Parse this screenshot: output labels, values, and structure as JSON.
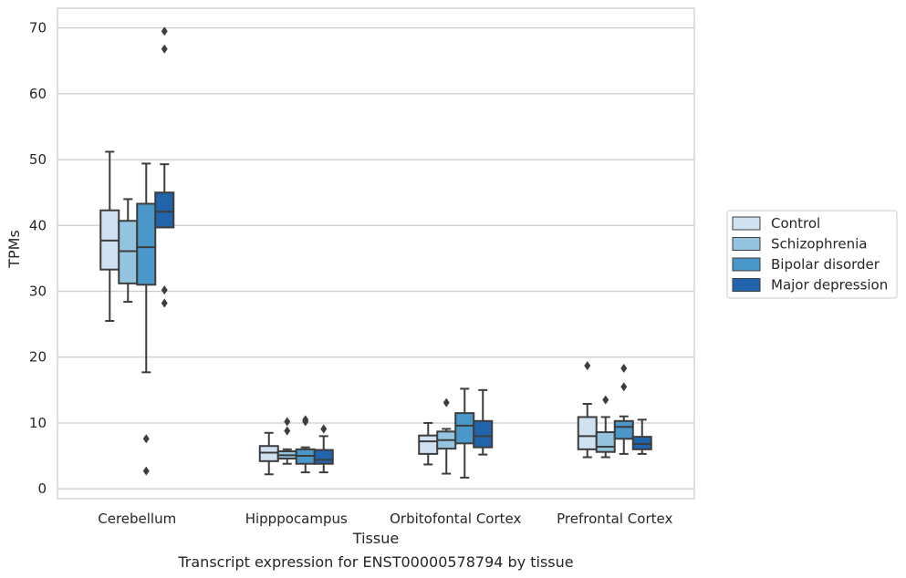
{
  "chart_data": {
    "type": "box",
    "xlabel": "Tissue",
    "ylabel": "TPMs",
    "caption": "Transcript expression for ENST00000578794 by tissue",
    "ylim": [
      -1.5,
      73
    ],
    "yticks": [
      0,
      10,
      20,
      30,
      40,
      50,
      60,
      70
    ],
    "grid": true,
    "legend_position": "right",
    "categories": [
      "Cerebellum",
      "Hipppocampus",
      "Orbitofontal Cortex",
      "Prefrontal Cortex"
    ],
    "series": [
      {
        "name": "Control",
        "color": "#d0e1f2",
        "boxes": [
          {
            "whislo": 25.5,
            "q1": 33.3,
            "med": 37.7,
            "q3": 42.3,
            "whishi": 51.2,
            "fliers": []
          },
          {
            "whislo": 2.2,
            "q1": 4.2,
            "med": 5.5,
            "q3": 6.5,
            "whishi": 8.5,
            "fliers": []
          },
          {
            "whislo": 3.7,
            "q1": 5.3,
            "med": 7.2,
            "q3": 8.1,
            "whishi": 10.0,
            "fliers": []
          },
          {
            "whislo": 4.8,
            "q1": 6.0,
            "med": 8.0,
            "q3": 10.9,
            "whishi": 12.9,
            "fliers": [
              18.7
            ]
          }
        ]
      },
      {
        "name": "Schizophrenia",
        "color": "#94c4df",
        "boxes": [
          {
            "whislo": 28.4,
            "q1": 31.2,
            "med": 36.1,
            "q3": 40.7,
            "whishi": 44.0,
            "fliers": []
          },
          {
            "whislo": 3.8,
            "q1": 4.6,
            "med": 5.1,
            "q3": 5.7,
            "whishi": 6.0,
            "fliers": [
              10.2,
              8.8
            ]
          },
          {
            "whislo": 2.3,
            "q1": 6.1,
            "med": 7.4,
            "q3": 8.7,
            "whishi": 9.1,
            "fliers": [
              13.1
            ]
          },
          {
            "whislo": 4.8,
            "q1": 5.6,
            "med": 6.4,
            "q3": 8.6,
            "whishi": 10.9,
            "fliers": [
              13.5
            ]
          }
        ]
      },
      {
        "name": "Bipolar disorder",
        "color": "#4a98c9",
        "boxes": [
          {
            "whislo": 17.7,
            "q1": 31.0,
            "med": 36.7,
            "q3": 43.3,
            "whishi": 49.4,
            "fliers": [
              7.6,
              2.7
            ]
          },
          {
            "whislo": 2.5,
            "q1": 3.8,
            "med": 5.0,
            "q3": 6.0,
            "whishi": 6.3,
            "fliers": [
              10.5,
              10.2
            ]
          },
          {
            "whislo": 1.7,
            "q1": 6.9,
            "med": 9.6,
            "q3": 11.5,
            "whishi": 15.2,
            "fliers": []
          },
          {
            "whislo": 5.3,
            "q1": 7.6,
            "med": 9.4,
            "q3": 10.3,
            "whishi": 11.0,
            "fliers": [
              18.3,
              15.5
            ]
          }
        ]
      },
      {
        "name": "Major depression",
        "color": "#2164ab",
        "boxes": [
          {
            "whislo": 39.7,
            "q1": 39.7,
            "med": 42.1,
            "q3": 45.0,
            "whishi": 49.3,
            "fliers": [
              30.2,
              28.2,
              69.5,
              66.8
            ]
          },
          {
            "whislo": 2.5,
            "q1": 3.8,
            "med": 4.4,
            "q3": 5.9,
            "whishi": 8.0,
            "fliers": [
              9.1
            ]
          },
          {
            "whislo": 5.2,
            "q1": 6.3,
            "med": 8.0,
            "q3": 10.3,
            "whishi": 15.0,
            "fliers": []
          },
          {
            "whislo": 5.3,
            "q1": 6.0,
            "med": 6.8,
            "q3": 7.9,
            "whishi": 10.5,
            "fliers": []
          }
        ]
      }
    ]
  }
}
